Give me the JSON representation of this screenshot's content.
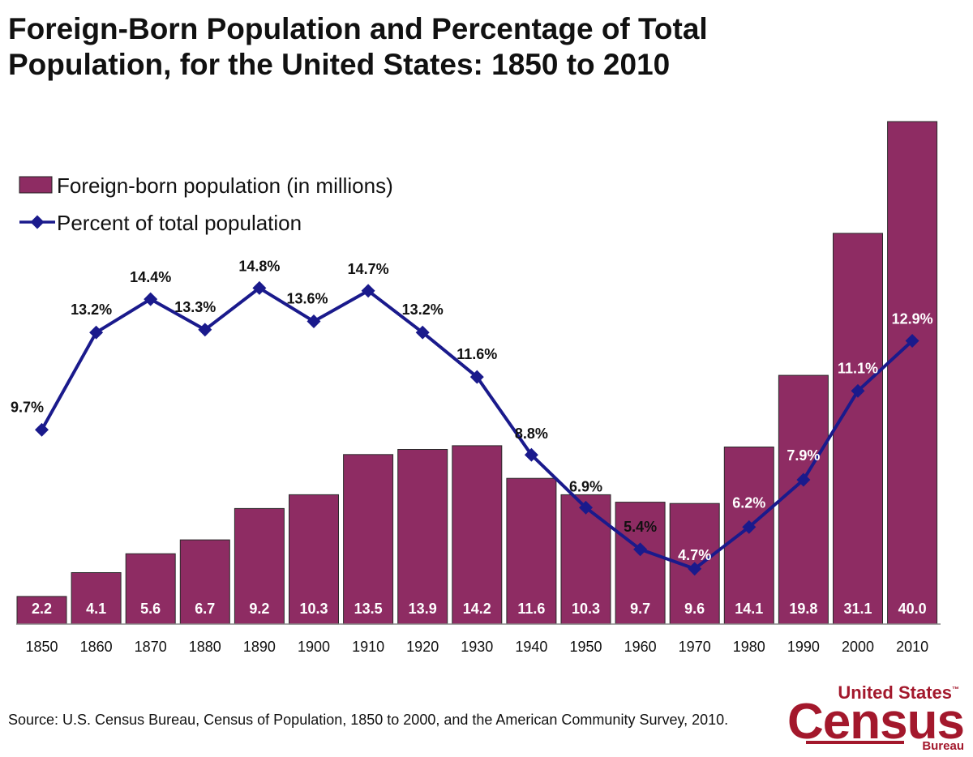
{
  "title": "Foreign-Born Population and Percentage of Total Population, for the United States: 1850 to 2010",
  "source": "Source: U.S. Census Bureau, Census of Population, 1850 to 2000, and the American Community Survey, 2010.",
  "logo": {
    "line1": "United States",
    "tm": "™",
    "line2": "Census",
    "line3": "Bureau"
  },
  "chart_data": {
    "type": "bar",
    "title": "Foreign-Born Population and Percentage of Total Population, for the United States: 1850 to 2010",
    "categories": [
      "1850",
      "1860",
      "1870",
      "1880",
      "1890",
      "1900",
      "1910",
      "1920",
      "1930",
      "1940",
      "1950",
      "1960",
      "1970",
      "1980",
      "1990",
      "2000",
      "2010"
    ],
    "series": [
      {
        "name": "Foreign-born population (in millions)",
        "type": "bar",
        "color": "#8e2c63",
        "values": [
          2.2,
          4.1,
          5.6,
          6.7,
          9.2,
          10.3,
          13.5,
          13.9,
          14.2,
          11.6,
          10.3,
          9.7,
          9.6,
          14.1,
          19.8,
          31.1,
          40.0
        ],
        "labels": [
          "2.2",
          "4.1",
          "5.6",
          "6.7",
          "9.2",
          "10.3",
          "13.5",
          "13.9",
          "14.2",
          "11.6",
          "10.3",
          "9.7",
          "9.6",
          "14.1",
          "19.8",
          "31.1",
          "40.0"
        ]
      },
      {
        "name": "Percent of total population",
        "type": "line",
        "color": "#1a1a8c",
        "values": [
          9.7,
          13.2,
          14.4,
          13.3,
          14.8,
          13.6,
          14.7,
          13.2,
          11.6,
          8.8,
          6.9,
          5.4,
          4.7,
          6.2,
          7.9,
          11.1,
          12.9
        ],
        "labels": [
          "9.7%",
          "13.2%",
          "14.4%",
          "13.3%",
          "14.8%",
          "13.6%",
          "14.7%",
          "13.2%",
          "11.6%",
          "8.8%",
          "6.9%",
          "5.4%",
          "4.7%",
          "6.2%",
          "7.9%",
          "11.1%",
          "12.9%"
        ]
      }
    ],
    "ylim_bars": [
      0,
      40
    ],
    "ylim_percent": [
      0,
      20
    ],
    "legend": [
      "Foreign-born population (in millions)",
      "Percent of total population"
    ],
    "legend_position": "top-left",
    "grid": false
  }
}
